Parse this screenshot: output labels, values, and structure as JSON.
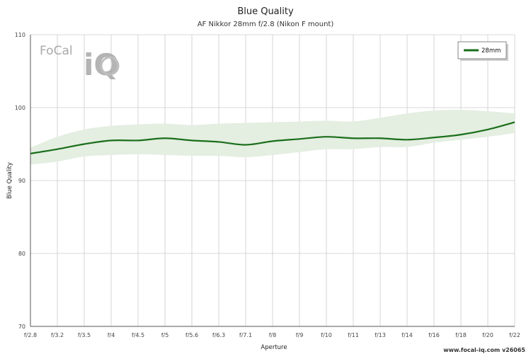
{
  "chart_data": {
    "type": "line",
    "title": "Blue Quality",
    "subtitle": "AF Nikkor 28mm f/2.8 (Nikon F mount)",
    "xlabel": "Aperture",
    "ylabel": "Blue Quality",
    "ylim": [
      70,
      110
    ],
    "yticks": [
      "70",
      "80",
      "90",
      "100",
      "110"
    ],
    "categories": [
      "f/2.8",
      "f/3.2",
      "f/3.5",
      "f/4",
      "f/4.5",
      "f/5",
      "f/5.6",
      "f/6.3",
      "f/7.1",
      "f/8",
      "f/9",
      "f/10",
      "f/11",
      "f/13",
      "f/14",
      "f/16",
      "f/18",
      "f/20",
      "f/22"
    ],
    "series": [
      {
        "name": "28mm",
        "color": "#1a6e1a",
        "values": [
          93.7,
          94.3,
          95.0,
          95.5,
          95.5,
          95.8,
          95.5,
          95.3,
          94.9,
          95.4,
          95.7,
          96.0,
          95.8,
          95.8,
          95.6,
          95.9,
          96.3,
          97.0,
          98.0
        ],
        "band_upper": [
          94.5,
          96.0,
          97.0,
          97.5,
          97.7,
          97.8,
          97.6,
          97.8,
          97.9,
          98.0,
          98.1,
          98.2,
          98.1,
          98.6,
          99.2,
          99.6,
          99.7,
          99.5,
          99.2
        ],
        "band_lower": [
          92.2,
          92.6,
          93.3,
          93.5,
          93.6,
          93.5,
          93.4,
          93.4,
          93.2,
          93.5,
          93.9,
          94.3,
          94.3,
          94.6,
          94.6,
          95.2,
          95.6,
          96.0,
          96.5
        ]
      }
    ],
    "band_color": "#e4eee1",
    "grid": true,
    "legend_position": "top-right"
  },
  "branding": {
    "logo_focal": "FoCal",
    "logo_iq": "iQ",
    "credit": "www.focal-iq.com  v26065"
  }
}
